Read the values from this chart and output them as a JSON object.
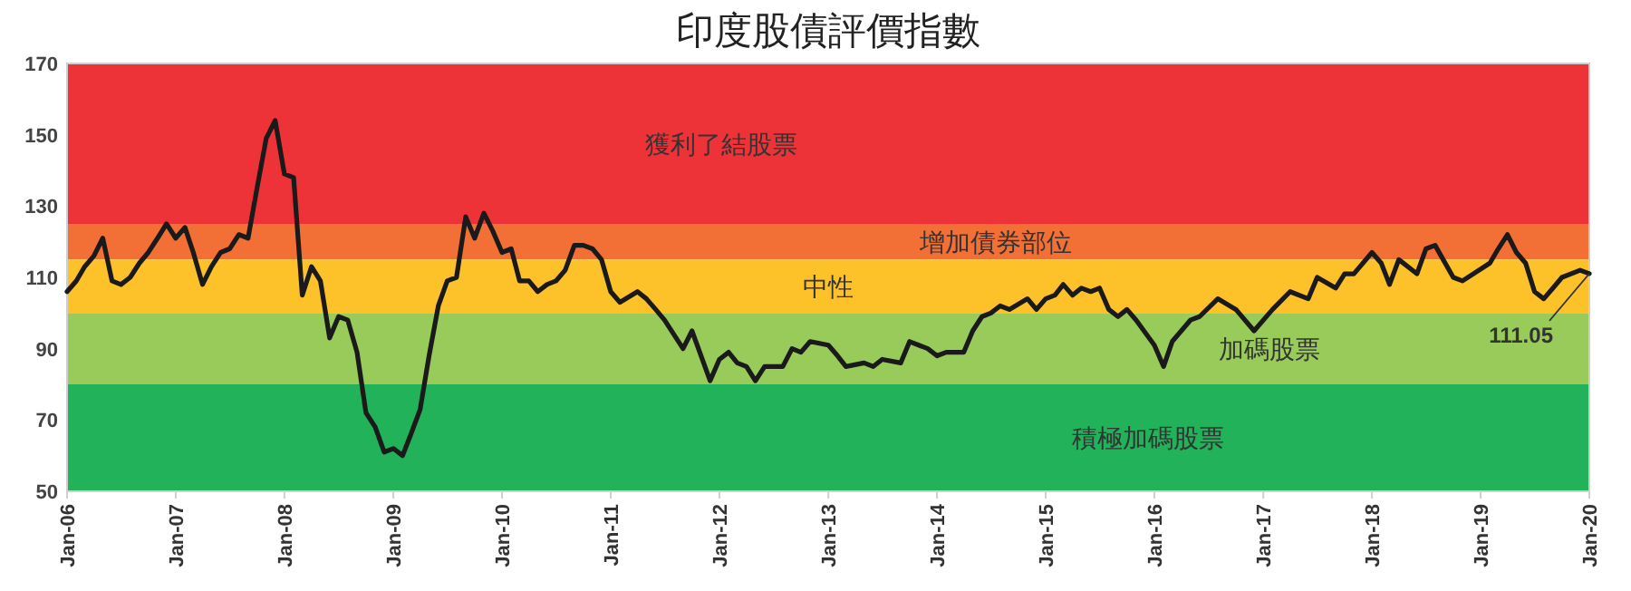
{
  "chart_data": {
    "type": "line",
    "title": "印度股債評價指數",
    "x": [
      "2006-01",
      "2006-02",
      "2006-03",
      "2006-04",
      "2006-05",
      "2006-06",
      "2006-07",
      "2006-08",
      "2006-09",
      "2006-10",
      "2006-11",
      "2006-12",
      "2007-01",
      "2007-02",
      "2007-03",
      "2007-04",
      "2007-05",
      "2007-06",
      "2007-07",
      "2007-08",
      "2007-09",
      "2007-10",
      "2007-11",
      "2007-12",
      "2008-01",
      "2008-02",
      "2008-03",
      "2008-04",
      "2008-05",
      "2008-06",
      "2008-07",
      "2008-08",
      "2008-09",
      "2008-10",
      "2008-11",
      "2008-12",
      "2009-01",
      "2009-02",
      "2009-03",
      "2009-04",
      "2009-05",
      "2009-06",
      "2009-07",
      "2009-08",
      "2009-09",
      "2009-10",
      "2009-11",
      "2009-12",
      "2010-01",
      "2010-02",
      "2010-03",
      "2010-04",
      "2010-05",
      "2010-06",
      "2010-07",
      "2010-08",
      "2010-09",
      "2010-10",
      "2010-11",
      "2010-12",
      "2011-01",
      "2011-02",
      "2011-04",
      "2011-05",
      "2011-06",
      "2011-07",
      "2011-09",
      "2011-10",
      "2011-12",
      "2012-01",
      "2012-02",
      "2012-03",
      "2012-04",
      "2012-05",
      "2012-06",
      "2012-08",
      "2012-09",
      "2012-10",
      "2012-11",
      "2013-01",
      "2013-02",
      "2013-03",
      "2013-05",
      "2013-06",
      "2013-07",
      "2013-09",
      "2013-10",
      "2013-12",
      "2014-01",
      "2014-02",
      "2014-04",
      "2014-05",
      "2014-06",
      "2014-07",
      "2014-08",
      "2014-09",
      "2014-11",
      "2014-12",
      "2015-01",
      "2015-02",
      "2015-03",
      "2015-04",
      "2015-05",
      "2015-06",
      "2015-07",
      "2015-08",
      "2015-09",
      "2015-10",
      "2015-11",
      "2016-01",
      "2016-02",
      "2016-03",
      "2016-05",
      "2016-06",
      "2016-08",
      "2016-10",
      "2016-12",
      "2017-02",
      "2017-04",
      "2017-06",
      "2017-07",
      "2017-09",
      "2017-10",
      "2017-11",
      "2018-01",
      "2018-02",
      "2018-03",
      "2018-04",
      "2018-06",
      "2018-07",
      "2018-08",
      "2018-10",
      "2018-11",
      "2019-02",
      "2019-03",
      "2019-04",
      "2019-05",
      "2019-06",
      "2019-07",
      "2019-08",
      "2019-09",
      "2019-10",
      "2019-12",
      "2020-01"
    ],
    "series": [
      {
        "color": "#1a1a1a",
        "values": [
          106,
          109,
          113,
          116,
          121,
          109,
          108,
          110,
          114,
          117,
          121,
          125,
          121,
          124,
          117,
          108,
          113,
          117,
          118,
          122,
          121,
          135,
          149,
          154,
          139,
          138,
          105,
          113,
          109,
          93,
          99,
          98,
          89,
          72,
          68,
          61,
          62,
          60,
          66,
          73,
          88,
          102,
          109,
          110,
          127,
          121,
          128,
          123,
          117,
          118,
          109,
          109,
          106,
          108,
          109,
          112,
          119,
          119,
          118,
          115,
          106,
          103,
          106,
          104,
          101,
          98,
          90,
          95,
          81,
          87,
          89,
          86,
          85,
          81,
          85,
          85,
          90,
          89,
          92,
          91,
          88,
          85,
          86,
          85,
          87,
          86,
          92,
          90,
          88,
          89,
          89,
          95,
          99,
          100,
          102,
          101,
          104,
          101,
          104,
          105,
          108,
          105,
          107,
          106,
          107,
          101,
          99,
          101,
          98,
          91,
          85,
          92,
          98,
          99,
          104,
          101,
          95,
          101,
          106,
          104,
          110,
          107,
          111,
          111,
          117,
          114,
          108,
          115,
          111,
          118,
          119,
          110,
          109,
          114,
          118,
          122,
          117,
          114,
          106,
          104,
          107,
          110,
          112,
          111.05
        ]
      }
    ],
    "xlim": [
      "2006-01",
      "2020-01"
    ],
    "xticks": [
      {
        "value": "2006-01",
        "label": "Jan-06"
      },
      {
        "value": "2007-01",
        "label": "Jan-07"
      },
      {
        "value": "2008-01",
        "label": "Jan-08"
      },
      {
        "value": "2009-01",
        "label": "Jan-09"
      },
      {
        "value": "2010-01",
        "label": "Jan-10"
      },
      {
        "value": "2011-01",
        "label": "Jan-11"
      },
      {
        "value": "2012-01",
        "label": "Jan-12"
      },
      {
        "value": "2013-01",
        "label": "Jan-13"
      },
      {
        "value": "2014-01",
        "label": "Jan-14"
      },
      {
        "value": "2015-01",
        "label": "Jan-15"
      },
      {
        "value": "2016-01",
        "label": "Jan-16"
      },
      {
        "value": "2017-01",
        "label": "Jan-17"
      },
      {
        "value": "2018-01",
        "label": "Jan-18"
      },
      {
        "value": "2019-01",
        "label": "Jan-19"
      },
      {
        "value": "2020-01",
        "label": "Jan-20"
      }
    ],
    "ylim": [
      50,
      170
    ],
    "yticks": [
      50,
      70,
      90,
      110,
      130,
      150,
      170
    ],
    "bands": [
      {
        "axis": "y",
        "from": 125,
        "to": 170,
        "label": "獲利了結股票",
        "color": "#ee3338"
      },
      {
        "axis": "y",
        "from": 115,
        "to": 125,
        "label": "增加債券部位",
        "color": "#f26f36"
      },
      {
        "axis": "y",
        "from": 100,
        "to": 115,
        "label": "中性",
        "color": "#fdc12a"
      },
      {
        "axis": "y",
        "from": 80,
        "to": 100,
        "label": "加碼股票",
        "color": "#99cb5b"
      },
      {
        "axis": "y",
        "from": 50,
        "to": 80,
        "label": "積極加碼股票",
        "color": "#21b25a"
      }
    ],
    "annotations": [
      {
        "text": "111.05",
        "x": "2020-01",
        "y": 111.05
      }
    ],
    "grid": false,
    "marker": "none",
    "line_style": "solid"
  }
}
